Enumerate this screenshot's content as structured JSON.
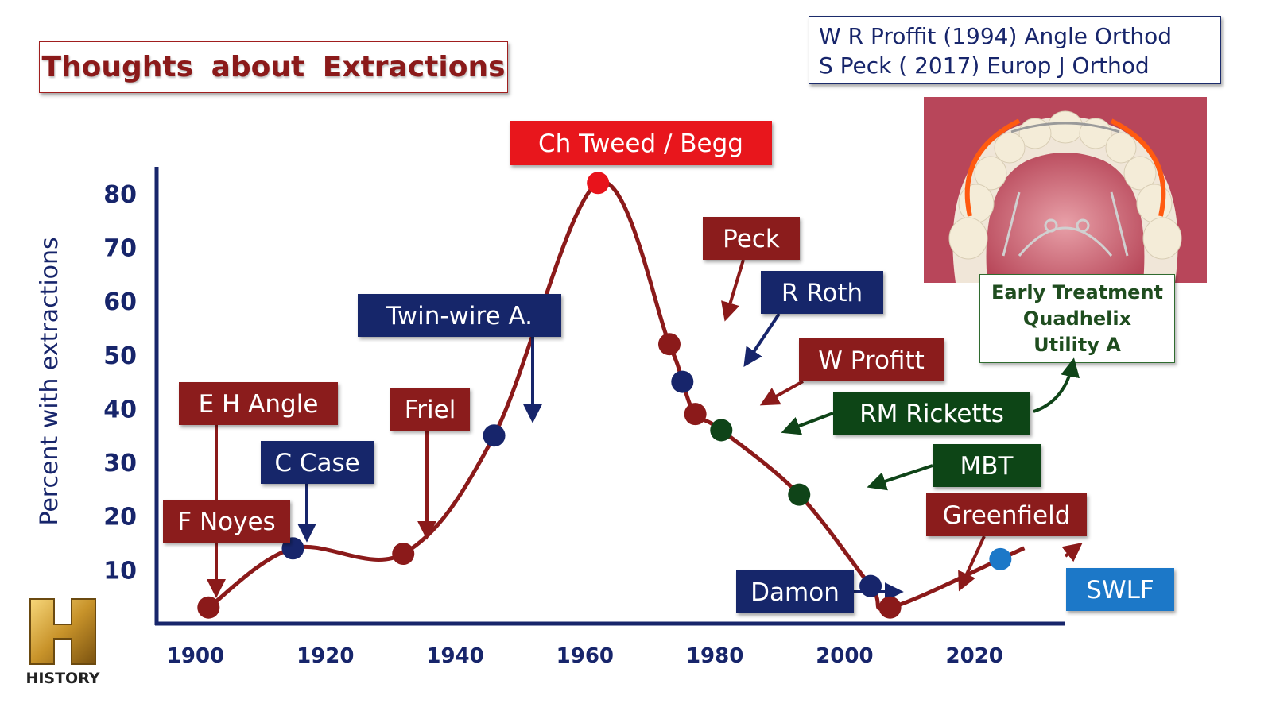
{
  "header": {
    "title": "Thoughts  about  Extractions",
    "references": [
      "W R Proffit (1994) Angle Orthod",
      "S Peck ( 2017) Europ J Orthod"
    ],
    "early_treatment": [
      "Early Treatment",
      "Quadhelix",
      "Utility A"
    ],
    "logo_text": "HISTORY"
  },
  "colors": {
    "dark_red": "#8b1a1a",
    "bright_red": "#e8131b",
    "navy": "#17256b",
    "dark_green": "#0f4418",
    "sky_blue": "#1c78c8"
  },
  "chart_data": {
    "type": "line",
    "xlabel": "",
    "ylabel": "Percent with extractions",
    "x_ticks": [
      1900,
      1920,
      1940,
      1960,
      1980,
      2000,
      2020
    ],
    "y_ticks": [
      10,
      20,
      30,
      40,
      50,
      60,
      70,
      80
    ],
    "xlim": [
      1894,
      2034
    ],
    "ylim": [
      0,
      85
    ],
    "grid": false,
    "points": [
      {
        "x": 1902,
        "y": 3,
        "color": "dark_red"
      },
      {
        "x": 1915,
        "y": 14,
        "color": "navy"
      },
      {
        "x": 1932,
        "y": 13,
        "color": "dark_red"
      },
      {
        "x": 1946,
        "y": 35,
        "color": "navy"
      },
      {
        "x": 1962,
        "y": 82,
        "color": "bright_red"
      },
      {
        "x": 1973,
        "y": 52,
        "color": "dark_red"
      },
      {
        "x": 1975,
        "y": 45,
        "color": "navy"
      },
      {
        "x": 1977,
        "y": 39,
        "color": "dark_red"
      },
      {
        "x": 1981,
        "y": 36,
        "color": "dark_green"
      },
      {
        "x": 1993,
        "y": 24,
        "color": "dark_green"
      },
      {
        "x": 2004,
        "y": 7,
        "color": "navy"
      },
      {
        "x": 2007,
        "y": 3,
        "color": "dark_red"
      },
      {
        "x": 2024,
        "y": 12,
        "color": "sky_blue"
      }
    ],
    "annotations": [
      {
        "text": "E H Angle",
        "color": "dark_red",
        "target": 0
      },
      {
        "text": "F Noyes",
        "color": "dark_red",
        "target": 0
      },
      {
        "text": "C Case",
        "color": "navy",
        "target": 1
      },
      {
        "text": "Friel",
        "color": "dark_red",
        "target": 2
      },
      {
        "text": "Twin-wire A.",
        "color": "navy",
        "target": 3
      },
      {
        "text": "Ch Tweed / Begg",
        "color": "bright_red",
        "target": 4
      },
      {
        "text": "Peck",
        "color": "dark_red",
        "target": 5
      },
      {
        "text": "R Roth",
        "color": "navy",
        "target": 6
      },
      {
        "text": "W Profitt",
        "color": "dark_red",
        "target": 7
      },
      {
        "text": "RM Ricketts",
        "color": "dark_green",
        "target": 8
      },
      {
        "text": "MBT",
        "color": "dark_green",
        "target": 9
      },
      {
        "text": "Damon",
        "color": "navy",
        "target": 10
      },
      {
        "text": "Greenfield",
        "color": "dark_red",
        "target": 11
      },
      {
        "text": "SWLF",
        "color": "sky_blue",
        "target": 12
      }
    ]
  }
}
